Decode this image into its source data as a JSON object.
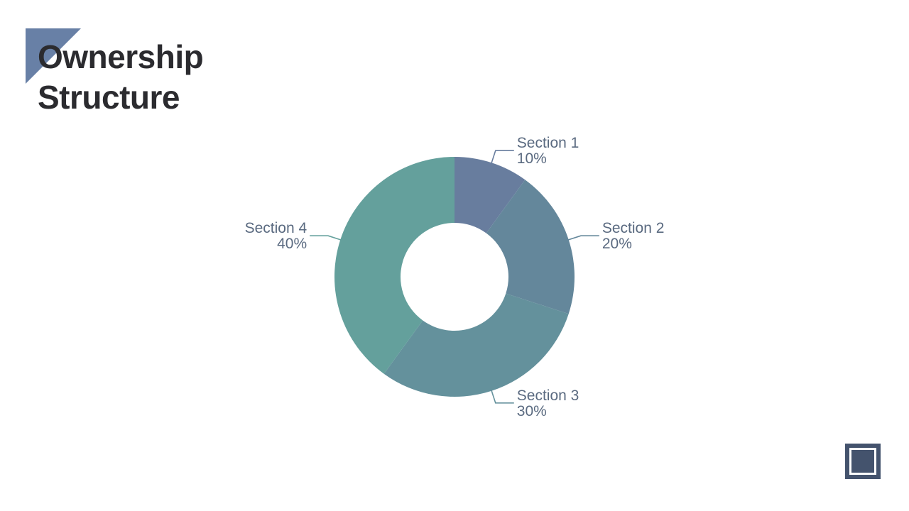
{
  "slide": {
    "title_line1": "Ownership",
    "title_line2": "Structure",
    "accent_color": "#6880a6",
    "nav_icon": "square-frame-icon"
  },
  "chart_data": {
    "type": "pie",
    "variant": "donut",
    "title": "",
    "categories": [
      "Section 1",
      "Section 2",
      "Section 3",
      "Section 4"
    ],
    "values": [
      10,
      20,
      30,
      40
    ],
    "value_labels": [
      "10%",
      "20%",
      "30%",
      "40%"
    ],
    "colors": [
      "#687d9e",
      "#64879b",
      "#64919c",
      "#64a09c"
    ],
    "start_angle_deg": 0,
    "direction": "clockwise",
    "legend": "none",
    "data_labels": "outside with leader lines"
  }
}
